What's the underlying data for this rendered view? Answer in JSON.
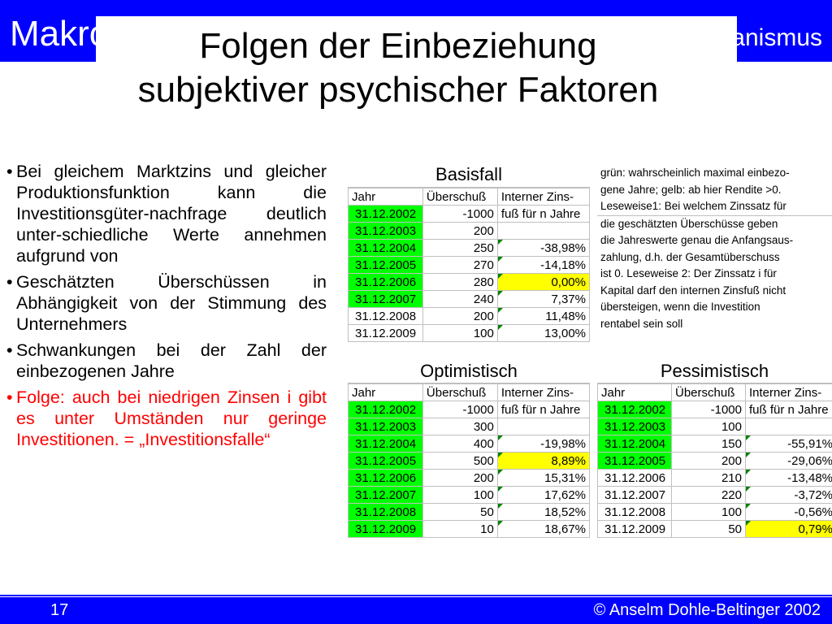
{
  "header": {
    "left_label": "Makroökonomie",
    "right_label": "Keynesianismus"
  },
  "title": {
    "line1": "Folgen der Einbeziehung",
    "line2": "subjektiver psychischer Faktoren"
  },
  "bullets": [
    {
      "text": "Bei gleichem Marktzins und gleicher Produktionsfunktion kann die Investitionsgüter-nachfrage deutlich unter-schiedliche Werte annehmen aufgrund von",
      "color": "#000000"
    },
    {
      "text": "Geschätzten Überschüssen in Abhängigkeit von der Stimmung des Unternehmers",
      "color": "#000000"
    },
    {
      "text": "Schwankungen bei der Zahl der einbezogenen Jahre",
      "color": "#000000"
    },
    {
      "text": "Folge: auch bei niedrigen Zinsen i gibt es unter Umständen nur geringe Investitionen. = „Investitionsfalle“",
      "color": "#ff0000"
    }
  ],
  "tables": {
    "basisfall": {
      "title": "Basisfall",
      "columns": [
        "Jahr",
        "Überschuß",
        "Interner Zins-"
      ],
      "rows": [
        {
          "jahr": "31.12.2002",
          "ueberschuss": "-1000",
          "zins": "fuß für n Jahre",
          "jahr_color": "green",
          "zins_color": "",
          "marker": false
        },
        {
          "jahr": "31.12.2003",
          "ueberschuss": "200",
          "zins": "",
          "jahr_color": "green",
          "zins_color": "",
          "marker": false
        },
        {
          "jahr": "31.12.2004",
          "ueberschuss": "250",
          "zins": "-38,98%",
          "jahr_color": "green",
          "zins_color": "",
          "marker": true
        },
        {
          "jahr": "31.12.2005",
          "ueberschuss": "270",
          "zins": "-14,18%",
          "jahr_color": "green",
          "zins_color": "",
          "marker": true
        },
        {
          "jahr": "31.12.2006",
          "ueberschuss": "280",
          "zins": "0,00%",
          "jahr_color": "green",
          "zins_color": "yellow",
          "marker": true
        },
        {
          "jahr": "31.12.2007",
          "ueberschuss": "240",
          "zins": "7,37%",
          "jahr_color": "green",
          "zins_color": "",
          "marker": true
        },
        {
          "jahr": "31.12.2008",
          "ueberschuss": "200",
          "zins": "11,48%",
          "jahr_color": "",
          "zins_color": "",
          "marker": true
        },
        {
          "jahr": "31.12.2009",
          "ueberschuss": "100",
          "zins": "13,00%",
          "jahr_color": "",
          "zins_color": "",
          "marker": true
        }
      ]
    },
    "optimistisch": {
      "title": "Optimistisch",
      "columns": [
        "Jahr",
        "Überschuß",
        "Interner Zins-"
      ],
      "rows": [
        {
          "jahr": "31.12.2002",
          "ueberschuss": "-1000",
          "zins": "fuß für n Jahre",
          "jahr_color": "green",
          "zins_color": "",
          "marker": false
        },
        {
          "jahr": "31.12.2003",
          "ueberschuss": "300",
          "zins": "",
          "jahr_color": "green",
          "zins_color": "",
          "marker": false
        },
        {
          "jahr": "31.12.2004",
          "ueberschuss": "400",
          "zins": "-19,98%",
          "jahr_color": "green",
          "zins_color": "",
          "marker": true
        },
        {
          "jahr": "31.12.2005",
          "ueberschuss": "500",
          "zins": "8,89%",
          "jahr_color": "green",
          "zins_color": "yellow",
          "marker": true
        },
        {
          "jahr": "31.12.2006",
          "ueberschuss": "200",
          "zins": "15,31%",
          "jahr_color": "green",
          "zins_color": "",
          "marker": true
        },
        {
          "jahr": "31.12.2007",
          "ueberschuss": "100",
          "zins": "17,62%",
          "jahr_color": "green",
          "zins_color": "",
          "marker": true
        },
        {
          "jahr": "31.12.2008",
          "ueberschuss": "50",
          "zins": "18,52%",
          "jahr_color": "green",
          "zins_color": "",
          "marker": true
        },
        {
          "jahr": "31.12.2009",
          "ueberschuss": "10",
          "zins": "18,67%",
          "jahr_color": "green",
          "zins_color": "",
          "marker": true
        }
      ]
    },
    "pessimistisch": {
      "title": "Pessimistisch",
      "columns": [
        "Jahr",
        "Überschuß",
        "Interner Zins-"
      ],
      "rows": [
        {
          "jahr": "31.12.2002",
          "ueberschuss": "-1000",
          "zins": "fuß für n Jahre",
          "jahr_color": "green",
          "zins_color": "",
          "marker": false
        },
        {
          "jahr": "31.12.2003",
          "ueberschuss": "100",
          "zins": "",
          "jahr_color": "green",
          "zins_color": "",
          "marker": false
        },
        {
          "jahr": "31.12.2004",
          "ueberschuss": "150",
          "zins": "-55,91%",
          "jahr_color": "green",
          "zins_color": "",
          "marker": true
        },
        {
          "jahr": "31.12.2005",
          "ueberschuss": "200",
          "zins": "-29,06%",
          "jahr_color": "green",
          "zins_color": "",
          "marker": true
        },
        {
          "jahr": "31.12.2006",
          "ueberschuss": "210",
          "zins": "-13,48%",
          "jahr_color": "",
          "zins_color": "",
          "marker": true
        },
        {
          "jahr": "31.12.2007",
          "ueberschuss": "220",
          "zins": "-3,72%",
          "jahr_color": "",
          "zins_color": "",
          "marker": true
        },
        {
          "jahr": "31.12.2008",
          "ueberschuss": "100",
          "zins": "-0,56%",
          "jahr_color": "",
          "zins_color": "",
          "marker": true
        },
        {
          "jahr": "31.12.2009",
          "ueberschuss": "50",
          "zins": "0,79%",
          "jahr_color": "",
          "zins_color": "yellow",
          "marker": true
        }
      ]
    }
  },
  "notes": {
    "lines_top": [
      "grün: wahrscheinlich maximal einbezo-",
      "gene Jahre; gelb: ab hier Rendite >0.",
      "Leseweise1: Bei welchem Zinssatz für"
    ],
    "lines_bottom": [
      "die geschätzten Überschüsse geben",
      "die Jahreswerte genau die Anfangsaus-",
      "zahlung, d.h. der Gesamtüberschuss",
      "ist 0. Leseweise 2: Der Zinssatz i für",
      "Kapital darf den internen Zinsfuß nicht",
      "übersteigen, wenn die Investition",
      "rentabel sein soll"
    ]
  },
  "footer": {
    "page_number": "17",
    "copyright": "© Anselm Dohle-Beltinger 2002"
  },
  "colors": {
    "brand_blue": "#0000ff",
    "highlight_green": "#00ff00",
    "highlight_yellow": "#ffff00",
    "emphasis_red": "#ff0000"
  }
}
